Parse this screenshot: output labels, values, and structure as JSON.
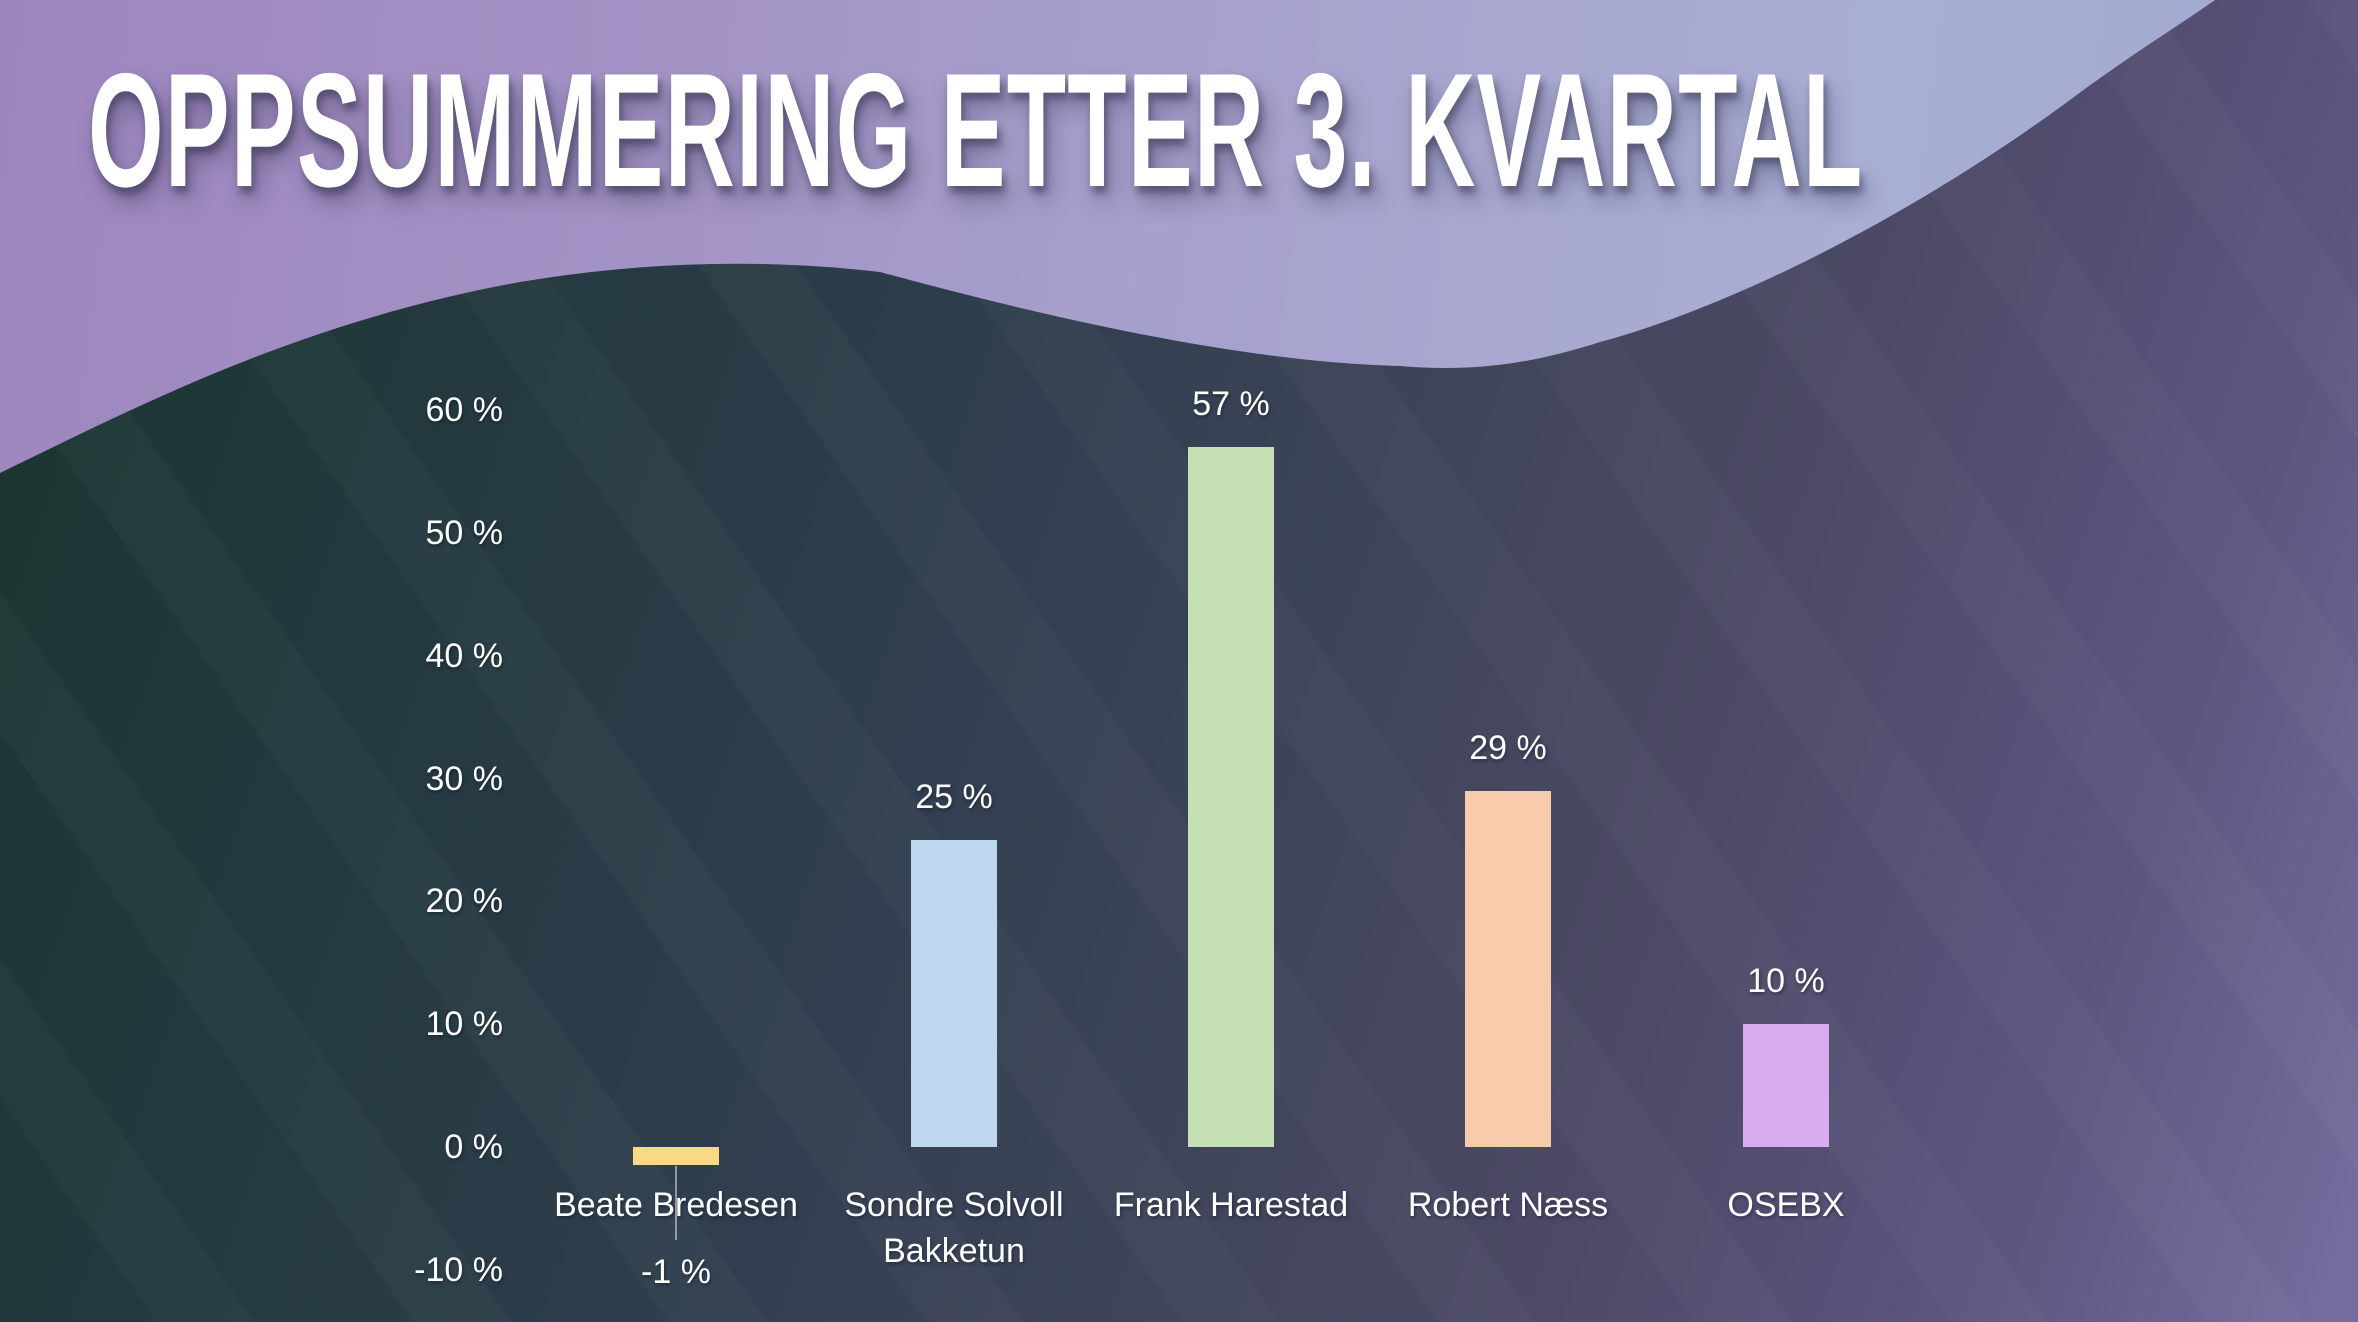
{
  "slide": {
    "title": "OPPSUMMERING ETTER 3. KVARTAL"
  },
  "chart_data": {
    "type": "bar",
    "title": "",
    "xlabel": "",
    "ylabel": "",
    "categories": [
      "Beate Bredesen",
      "Sondre Solvoll Bakketun",
      "Frank Harestad",
      "Robert Næss",
      "OSEBX"
    ],
    "values": [
      -1,
      25,
      57,
      29,
      10
    ],
    "data_labels": [
      "-1 %",
      "25 %",
      "57 %",
      "29 %",
      "10 %"
    ],
    "bar_colors": [
      "#f8da84",
      "#bdd7ee",
      "#c5e0b4",
      "#f8cbad",
      "#d8adf0"
    ],
    "ylim": [
      -10,
      60
    ],
    "ytick_values": [
      60,
      50,
      40,
      30,
      20,
      10,
      0,
      -10
    ],
    "ytick_labels": [
      "60 %",
      "50 %",
      "40 %",
      "30 %",
      "20 %",
      "10 %",
      "0 %",
      "-10 %"
    ],
    "grid": false,
    "legend": false,
    "label_color": "#ffffff"
  },
  "background": {
    "light_gradient": [
      "#9d86be",
      "#a495c6",
      "#a7a5cf",
      "#a9aed4",
      "#9fa6cd"
    ],
    "wave_gradient": [
      "#1c3531",
      "#253a41",
      "#303e4e",
      "#3f4559",
      "#4e4a68",
      "#5d5580",
      "#756b9c"
    ]
  }
}
